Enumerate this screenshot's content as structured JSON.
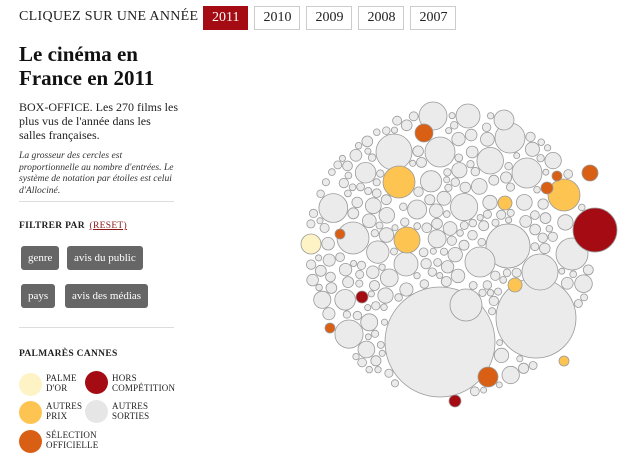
{
  "topbar": {
    "label": "CLIQUEZ SUR UNE ANNÉE",
    "years": [
      "2011",
      "2010",
      "2009",
      "2008",
      "2007"
    ],
    "active_year": "2011"
  },
  "side": {
    "title": "Le cinéma en France en 2011",
    "description": "BOX-OFFICE. Les 270 films les plus vus de l'année dans les salles françaises.",
    "note": "La grosseur des cercles est proportionnelle au nombre d'entrées. Le système de notation par étoiles est celui d'Allociné."
  },
  "filter": {
    "heading": "FILTRER PAR",
    "reset_label": "(RESET)",
    "buttons": [
      "genre",
      "avis du public",
      "pays",
      "avis des médias"
    ]
  },
  "cannes": {
    "heading": "PALMARÈS CANNES",
    "legend": [
      {
        "label": "PALME D'OR",
        "color": "#fdf3c4"
      },
      {
        "label": "HORS COMPÉTITION",
        "color": "#a40b12"
      },
      {
        "label": "AUTRES PRIX",
        "color": "#fdc452"
      },
      {
        "label": "AUTRES SORTIES",
        "color": "#e6e6e6"
      },
      {
        "label": "SÉLECTION OFFICIELLE",
        "color": "#d95f14"
      }
    ]
  },
  "colors": {
    "active_year_bg": "#a40b12",
    "bubble_default": "#ebebeb",
    "bubble_stroke": "#9a9a9a",
    "button_bg": "#666666"
  }
}
